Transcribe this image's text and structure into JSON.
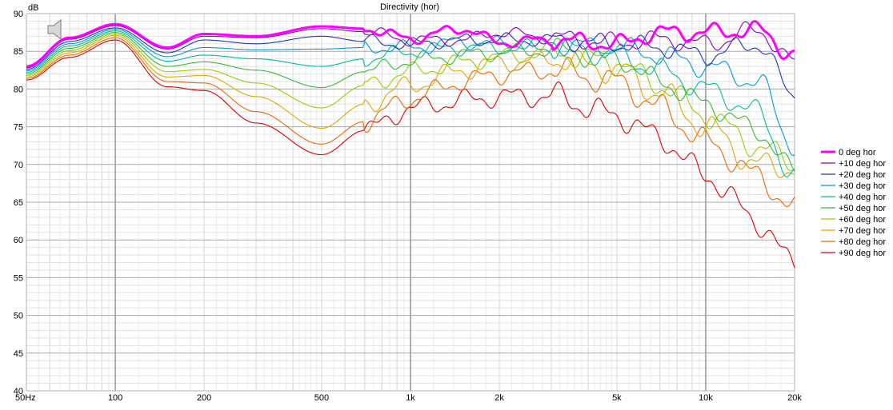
{
  "chart_data": {
    "type": "line",
    "title": "Directivity (hor)",
    "ylabel": "dB",
    "xlabel": "",
    "x_scale": "log",
    "xlim": [
      50,
      20000
    ],
    "ylim": [
      40,
      90
    ],
    "grid": true,
    "legend_position": "right",
    "x_tick_labels": [
      {
        "value": 50,
        "label": "50Hz"
      },
      {
        "value": 100,
        "label": "100"
      },
      {
        "value": 200,
        "label": "200"
      },
      {
        "value": 500,
        "label": "500"
      },
      {
        "value": 1000,
        "label": "1k"
      },
      {
        "value": 2000,
        "label": "2k"
      },
      {
        "value": 5000,
        "label": "5k"
      },
      {
        "value": 10000,
        "label": "10k"
      },
      {
        "value": 20000,
        "label": "20k"
      }
    ],
    "y_tick_labels": [
      "40",
      "45",
      "50",
      "55",
      "60",
      "65",
      "70",
      "75",
      "80",
      "85",
      "90"
    ],
    "x": [
      50,
      70,
      100,
      150,
      200,
      300,
      500,
      700,
      1000,
      1500,
      2000,
      3000,
      5000,
      7000,
      10000,
      15000,
      20000
    ],
    "series": [
      {
        "name": "0 deg hor",
        "color": "#ff00ff",
        "bold": true,
        "values": [
          83.0,
          86.8,
          88.6,
          85.5,
          87.3,
          87.0,
          88.3,
          88.0,
          86.7,
          88.0,
          86.2,
          86.5,
          86.0,
          87.5,
          87.5,
          87.8,
          84.5
        ]
      },
      {
        "name": "+10 deg hor",
        "color": "#8800cc",
        "values": [
          82.8,
          86.6,
          88.4,
          85.3,
          87.0,
          86.8,
          88.0,
          87.6,
          86.5,
          86.5,
          87.5,
          86.8,
          86.2,
          86.6,
          86.0,
          87.8,
          83.5
        ]
      },
      {
        "name": "+20 deg hor",
        "color": "#2233bb",
        "values": [
          82.6,
          86.3,
          88.1,
          84.8,
          86.5,
          86.0,
          87.0,
          86.3,
          86.0,
          86.5,
          86.5,
          86.5,
          86.0,
          85.5,
          84.5,
          86.0,
          79.0
        ]
      },
      {
        "name": "+30 deg hor",
        "color": "#0099dd",
        "values": [
          82.4,
          86.0,
          87.9,
          84.3,
          85.5,
          85.2,
          85.3,
          85.5,
          85.5,
          86.2,
          86.0,
          86.0,
          85.5,
          84.5,
          83.0,
          81.0,
          72.5
        ]
      },
      {
        "name": "+40 deg hor",
        "color": "#00bb99",
        "values": [
          82.2,
          85.7,
          87.7,
          83.7,
          84.5,
          84.0,
          83.0,
          84.0,
          85.0,
          85.5,
          85.5,
          85.5,
          84.5,
          82.5,
          80.0,
          77.0,
          68.0
        ]
      },
      {
        "name": "+50 deg hor",
        "color": "#33bb33",
        "values": [
          82.0,
          85.4,
          87.5,
          83.0,
          83.6,
          82.5,
          80.2,
          82.3,
          83.8,
          84.5,
          84.8,
          85.2,
          84.0,
          81.0,
          78.0,
          74.5,
          69.0
        ]
      },
      {
        "name": "+60 deg hor",
        "color": "#99cc00",
        "values": [
          81.8,
          85.1,
          87.3,
          82.3,
          82.6,
          80.8,
          77.5,
          80.5,
          82.3,
          83.5,
          84.3,
          84.8,
          83.5,
          80.5,
          76.5,
          72.5,
          70.0
        ]
      },
      {
        "name": "+70 deg hor",
        "color": "#ddaa00",
        "values": [
          81.6,
          84.8,
          87.1,
          81.6,
          81.8,
          79.0,
          74.8,
          78.0,
          80.5,
          82.5,
          83.5,
          84.0,
          82.5,
          79.5,
          75.0,
          70.0,
          69.5
        ]
      },
      {
        "name": "+80 deg hor",
        "color": "#ee6600",
        "values": [
          81.4,
          84.5,
          86.8,
          81.0,
          80.8,
          77.0,
          72.7,
          75.7,
          78.8,
          81.0,
          82.0,
          82.5,
          81.0,
          77.5,
          73.0,
          68.5,
          64.0
        ]
      },
      {
        "name": "+90 deg hor",
        "color": "#dd0000",
        "values": [
          81.2,
          84.2,
          86.5,
          80.3,
          79.8,
          75.5,
          71.3,
          74.5,
          77.4,
          78.5,
          79.0,
          79.0,
          76.5,
          73.5,
          68.5,
          62.5,
          56.5
        ]
      }
    ]
  }
}
